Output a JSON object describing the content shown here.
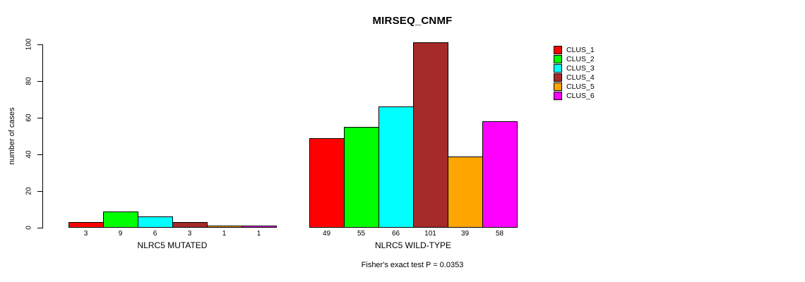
{
  "title": "MIRSEQ_CNMF",
  "ylabel": "number of cases",
  "annotation": "Fisher's exact test P = 0.0353",
  "chart_data": {
    "type": "bar",
    "title": "MIRSEQ_CNMF",
    "xlabel": "",
    "ylabel": "number of cases",
    "ylim": [
      0,
      100
    ],
    "yticks": [
      0,
      20,
      40,
      60,
      80,
      100
    ],
    "grid": false,
    "legend_position": "right",
    "bar_value_labels": true,
    "categories": [
      "NLRC5 MUTATED",
      "NLRC5 WILD-TYPE"
    ],
    "series": [
      {
        "name": "CLUS_1",
        "color": "#FF0000",
        "values": [
          3,
          49
        ]
      },
      {
        "name": "CLUS_2",
        "color": "#00FF00",
        "values": [
          9,
          55
        ]
      },
      {
        "name": "CLUS_3",
        "color": "#00FFFF",
        "values": [
          6,
          66
        ]
      },
      {
        "name": "CLUS_4",
        "color": "#A52A2A",
        "values": [
          3,
          101
        ]
      },
      {
        "name": "CLUS_5",
        "color": "#FFA500",
        "values": [
          1,
          39
        ]
      },
      {
        "name": "CLUS_6",
        "color": "#FF00FF",
        "values": [
          1,
          58
        ]
      }
    ],
    "annotation": "Fisher's exact test P = 0.0353"
  }
}
